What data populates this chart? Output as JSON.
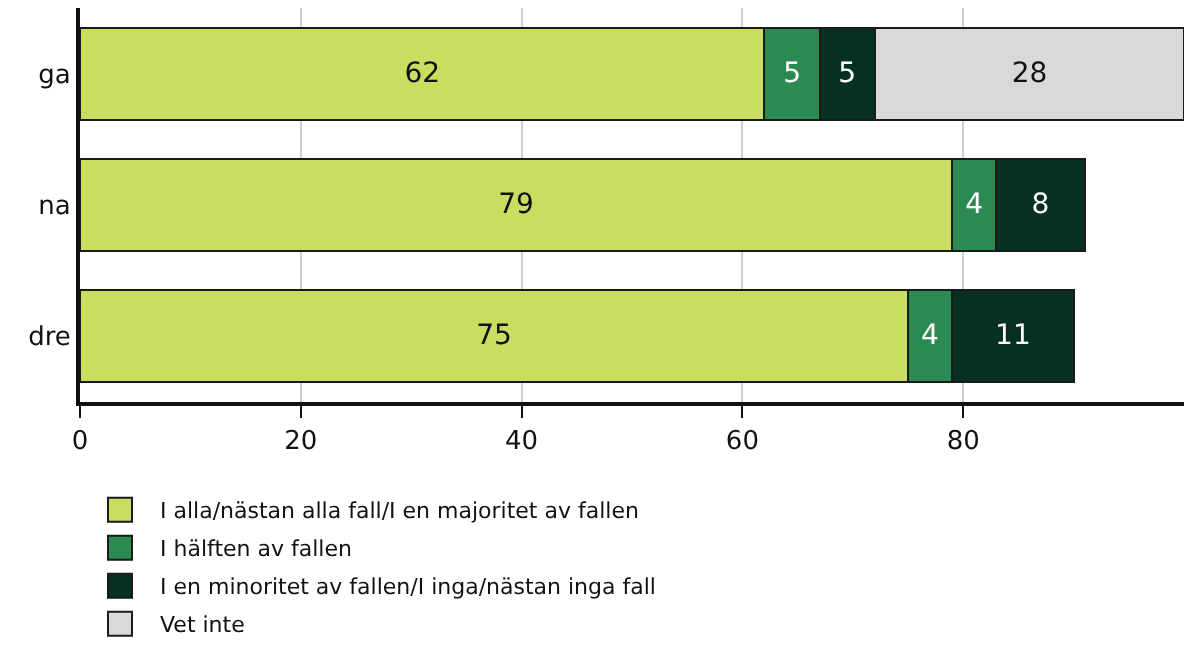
{
  "chart_data": {
    "type": "bar",
    "orientation": "horizontal",
    "stacked": true,
    "categories": [
      "ga",
      "na",
      "dre"
    ],
    "series": [
      {
        "name": "I alla/nästan alla fall/I en majoritet av fallen",
        "color": "#cadd5e",
        "values": [
          62,
          79,
          75
        ]
      },
      {
        "name": "I hälften av fallen",
        "color": "#2a8a52",
        "values": [
          5,
          4,
          4
        ]
      },
      {
        "name": "I en minoritet av fallen/I inga/nästan inga fall",
        "color": "#06301f",
        "values": [
          5,
          8,
          11
        ]
      },
      {
        "name": "Vet inte",
        "color": "#d9d9d9",
        "values": [
          28,
          null,
          null
        ]
      }
    ],
    "xlim": [
      0,
      100
    ],
    "xticks": [
      0,
      20,
      40,
      60,
      80
    ],
    "grid": "x",
    "legend": "bottom",
    "data_labels": true
  }
}
